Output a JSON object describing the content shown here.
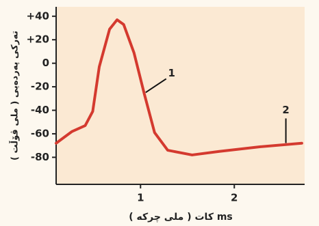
{
  "chart_data": {
    "type": "line",
    "y_label": "تەرکی پەردەیی ( ملی ڤۆڵت )",
    "x_label": "كات ( ملی چرکه ) ms",
    "x": [
      0.1,
      0.27,
      0.41,
      0.49,
      0.56,
      0.67,
      0.75,
      0.82,
      0.93,
      1.04,
      1.15,
      1.29,
      1.55,
      1.84,
      2.28,
      2.72
    ],
    "series": [
      {
        "color": "#d43a2f",
        "values": [
          -68,
          -58,
          -53,
          -41,
          -3,
          29,
          37,
          33,
          9,
          -26,
          -59,
          -74,
          -78,
          -75,
          -71,
          -68
        ]
      }
    ],
    "xlim": [
      0.1,
      2.75
    ],
    "xticks": [
      1,
      2
    ],
    "ylim": [
      -103,
      48
    ],
    "yticks": [
      {
        "value": 40,
        "label": "+40"
      },
      {
        "value": 20,
        "label": "+20"
      },
      0,
      -20,
      -40,
      -60,
      -80
    ],
    "annotations": [
      {
        "text": "1",
        "x": 1.04,
        "y": -26
      },
      {
        "text": "2",
        "x": 2.55,
        "y": -69
      }
    ]
  }
}
